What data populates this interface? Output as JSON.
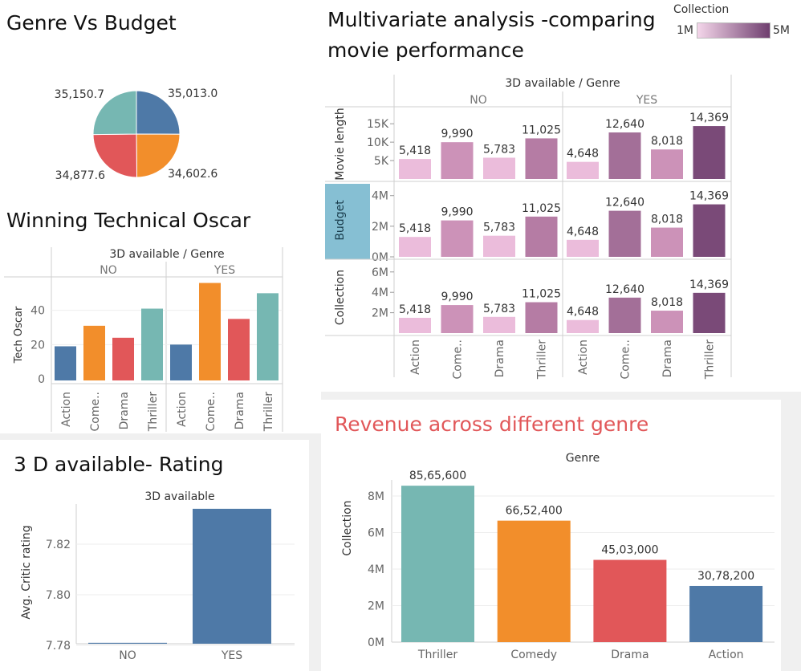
{
  "pie": {
    "title": "Genre Vs Budget",
    "colors": {
      "action": "#4e79a7",
      "comedy": "#f28e2b",
      "drama": "#e15759",
      "thriller": "#76b7b2"
    }
  },
  "oscar": {
    "title": "Winning Technical Oscar",
    "header": "3D available  /  Genre",
    "ylabel": "Tech Oscar"
  },
  "rating": {
    "title": "3 D available- Rating",
    "header": "3D available",
    "ylabel": "Avg. Critic rating"
  },
  "multi": {
    "title_line1": "Multivariate analysis -comparing",
    "title_line2": "movie performance",
    "header": "3D available  /  Genre",
    "legend_title": "Collection",
    "legend_min": "1M",
    "legend_max": "5M"
  },
  "revenue": {
    "title": "Revenue across different genre",
    "header": "Genre",
    "ylabel": "Collection"
  },
  "chart_data": [
    {
      "type": "pie",
      "title": "Genre Vs Budget",
      "slices": [
        {
          "label": "Action",
          "value": 35013.0,
          "display": "35,013.0",
          "color": "#4e79a7"
        },
        {
          "label": "Comedy",
          "value": 34602.6,
          "display": "34,602.6",
          "color": "#f28e2b"
        },
        {
          "label": "Drama",
          "value": 34877.6,
          "display": "34,877.6",
          "color": "#e15759"
        },
        {
          "label": "Thriller",
          "value": 35150.7,
          "display": "35,150.7",
          "color": "#76b7b2"
        }
      ]
    },
    {
      "type": "bar",
      "title": "Winning Technical Oscar",
      "groups": [
        "NO",
        "YES"
      ],
      "categories": [
        "Action",
        "Come..",
        "Drama",
        "Thriller"
      ],
      "colors": [
        "#4e79a7",
        "#f28e2b",
        "#e15759",
        "#76b7b2"
      ],
      "values": {
        "NO": [
          19,
          31,
          24,
          41
        ],
        "YES": [
          20,
          56,
          35,
          50
        ]
      },
      "ylabel": "Tech Oscar",
      "yticks": [
        0,
        20,
        40
      ],
      "ylim": [
        0,
        60
      ]
    },
    {
      "type": "bar",
      "title": "3 D available- Rating",
      "categories": [
        "NO",
        "YES"
      ],
      "values": [
        7.781,
        7.834
      ],
      "ylabel": "Avg. Critic rating",
      "yticks": [
        7.78,
        7.8,
        7.82
      ],
      "ylim": [
        7.775,
        7.84
      ],
      "color": "#4e79a7"
    },
    {
      "type": "bar",
      "title": "Multivariate analysis -comparing movie performance",
      "groups": [
        "NO",
        "YES"
      ],
      "categories": [
        "Action",
        "Come..",
        "Drama",
        "Thriller"
      ],
      "labels": {
        "NO": [
          "5,418",
          "9,990",
          "5,783",
          "11,025"
        ],
        "YES": [
          "4,648",
          "12,640",
          "8,018",
          "14,369"
        ]
      },
      "colors": {
        "NO": [
          "#ebbcdb",
          "#cc92b8",
          "#ebbcdb",
          "#b57ca4"
        ],
        "YES": [
          "#ebbcdb",
          "#a36f98",
          "#cc92b8",
          "#7a4a78"
        ]
      },
      "rows": [
        {
          "name": "Movie length",
          "highlight": false,
          "ylim": [
            0,
            17000
          ],
          "yticks": [
            {
              "v": 5000,
              "t": "5K"
            },
            {
              "v": 10000,
              "t": "10K"
            },
            {
              "v": 15000,
              "t": "15K"
            }
          ],
          "values": {
            "NO": [
              5418,
              9990,
              5783,
              11025
            ],
            "YES": [
              4648,
              12640,
              8018,
              14369
            ]
          }
        },
        {
          "name": "Budget",
          "highlight": true,
          "ylim": [
            0,
            4300000
          ],
          "yticks": [
            {
              "v": 0,
              "t": "0M"
            },
            {
              "v": 2000000,
              "t": "2M"
            },
            {
              "v": 4000000,
              "t": "4M"
            }
          ],
          "values": {
            "NO": [
              1300000,
              2380000,
              1380000,
              2630000
            ],
            "YES": [
              1110000,
              3010000,
              1910000,
              3430000
            ]
          }
        },
        {
          "name": "Collection",
          "highlight": false,
          "ylim": [
            0,
            6300000
          ],
          "yticks": [
            {
              "v": 2000000,
              "t": "2M"
            },
            {
              "v": 4000000,
              "t": "4M"
            },
            {
              "v": 6000000,
              "t": "6M"
            }
          ],
          "values": {
            "NO": [
              1500000,
              2750000,
              1590000,
              3030000
            ],
            "YES": [
              1280000,
              3480000,
              2200000,
              3950000
            ]
          }
        }
      ]
    },
    {
      "type": "bar",
      "title": "Revenue across different genre",
      "categories": [
        "Thriller",
        "Comedy",
        "Drama",
        "Action"
      ],
      "values": [
        8565600,
        6652400,
        4503000,
        3078200
      ],
      "labels": [
        "85,65,600",
        "66,52,400",
        "45,03,000",
        "30,78,200"
      ],
      "colors": [
        "#76b7b2",
        "#f28e2b",
        "#e15759",
        "#4e79a7"
      ],
      "ylabel": "Collection",
      "yticks": [
        {
          "v": 0,
          "t": "0M"
        },
        {
          "v": 2000000,
          "t": "2M"
        },
        {
          "v": 4000000,
          "t": "4M"
        },
        {
          "v": 6000000,
          "t": "6M"
        },
        {
          "v": 8000000,
          "t": "8M"
        }
      ],
      "ylim": [
        0,
        9000000
      ]
    }
  ]
}
